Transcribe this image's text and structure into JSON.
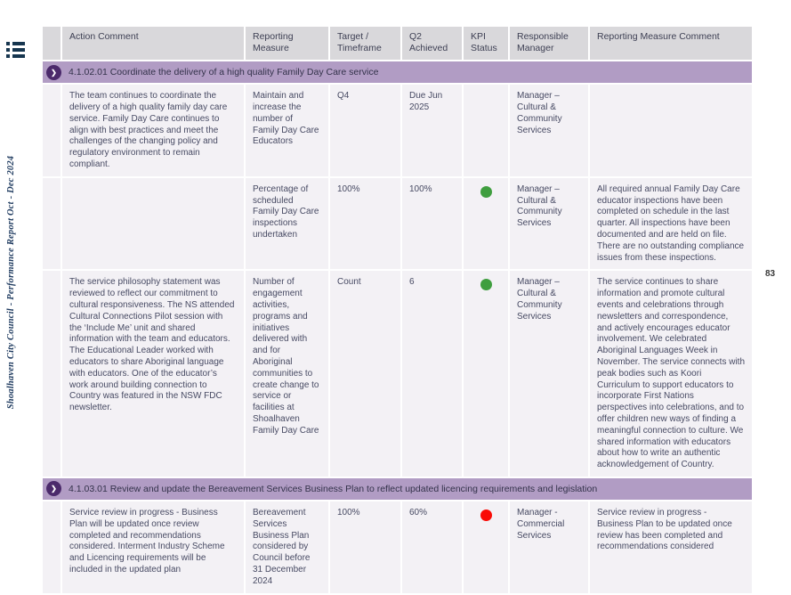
{
  "sidebar_title": "Shoalhaven City Council - Performance Report Oct - Dec 2024",
  "page_number": "83",
  "icons": {
    "chevron": "❯",
    "list_icon": "list-menu-icon"
  },
  "colors": {
    "kpi_green": "#3f9e3f",
    "kpi_red": "#f90b06",
    "band_purple": "#b19cc4",
    "circle_purple": "#4b2a6b",
    "header_grey": "#d9d8db",
    "row_bg": "#f3f1f5"
  },
  "table": {
    "headers": [
      "Action Comment",
      "Reporting Measure",
      "Target / Timeframe",
      "Q2 Achieved",
      "KPI Status",
      "Responsible Manager",
      "Reporting Measure Comment"
    ],
    "sections": [
      {
        "code_title": "4.1.02.01 Coordinate the delivery of a high quality Family Day Care service",
        "rows": [
          {
            "action_comment": "The team continues to coordinate the delivery of a high quality family day care service. Family Day Care continues to align with best practices and meet the challenges of the changing policy and regulatory environment to remain compliant.",
            "reporting_measure": "Maintain and increase the number of Family Day Care Educators",
            "target_timeframe": "Q4",
            "q2_achieved": "Due Jun 2025",
            "kpi_status": "none",
            "responsible_manager": "Manager – Cultural & Community Services",
            "reporting_measure_comment": ""
          },
          {
            "action_comment": "",
            "reporting_measure": "Percentage of scheduled Family Day Care inspections undertaken",
            "target_timeframe": "100%",
            "q2_achieved": "100%",
            "kpi_status": "green",
            "responsible_manager": "Manager – Cultural & Community Services",
            "reporting_measure_comment": "All required annual Family Day Care educator inspections have been completed on schedule in the last quarter. All inspections have been documented and are held on file. There are no outstanding compliance issues from these inspections."
          },
          {
            "action_comment": "The service philosophy statement was reviewed to reflect our commitment to cultural responsiveness. The NS attended Cultural Connections Pilot session with the ‘Include Me’ unit and shared information with the team and educators.  The Educational Leader worked with educators to share Aboriginal language with educators. One of the educator’s work around building connection to Country was featured in the NSW FDC newsletter.",
            "reporting_measure": "Number of engagement activities, programs and initiatives delivered with and for Aboriginal communities to create change to service or facilities at Shoalhaven Family Day Care",
            "target_timeframe": "Count",
            "q2_achieved": "6",
            "kpi_status": "green",
            "responsible_manager": "Manager – Cultural & Community Services",
            "reporting_measure_comment": "The service continues to share information and promote cultural events and celebrations through newsletters and correspondence, and actively encourages educator involvement. We celebrated Aboriginal Languages Week in November. The service connects with peak bodies such as Koori Curriculum to support educators to incorporate First Nations perspectives into celebrations, and to offer children new ways of finding a meaningful connection to culture. We shared information with educators about how to write an authentic acknowledgement of Country."
          }
        ]
      },
      {
        "code_title": "4.1.03.01 Review and update the Bereavement Services Business Plan to reflect updated licencing requirements and legislation",
        "rows": [
          {
            "action_comment": "Service review in progress - Business Plan will be updated once review completed and recommendations considered. Interment Industry Scheme and Licencing requirements will be included in the updated plan",
            "reporting_measure": "Bereavement Services Business Plan considered by Council before 31 December 2024",
            "target_timeframe": "100%",
            "q2_achieved": "60%",
            "kpi_status": "red",
            "responsible_manager": "Manager - Commercial Services",
            "reporting_measure_comment": "Service review in progress - Business Plan to be updated once review has been completed and recommendations considered"
          }
        ]
      }
    ]
  }
}
